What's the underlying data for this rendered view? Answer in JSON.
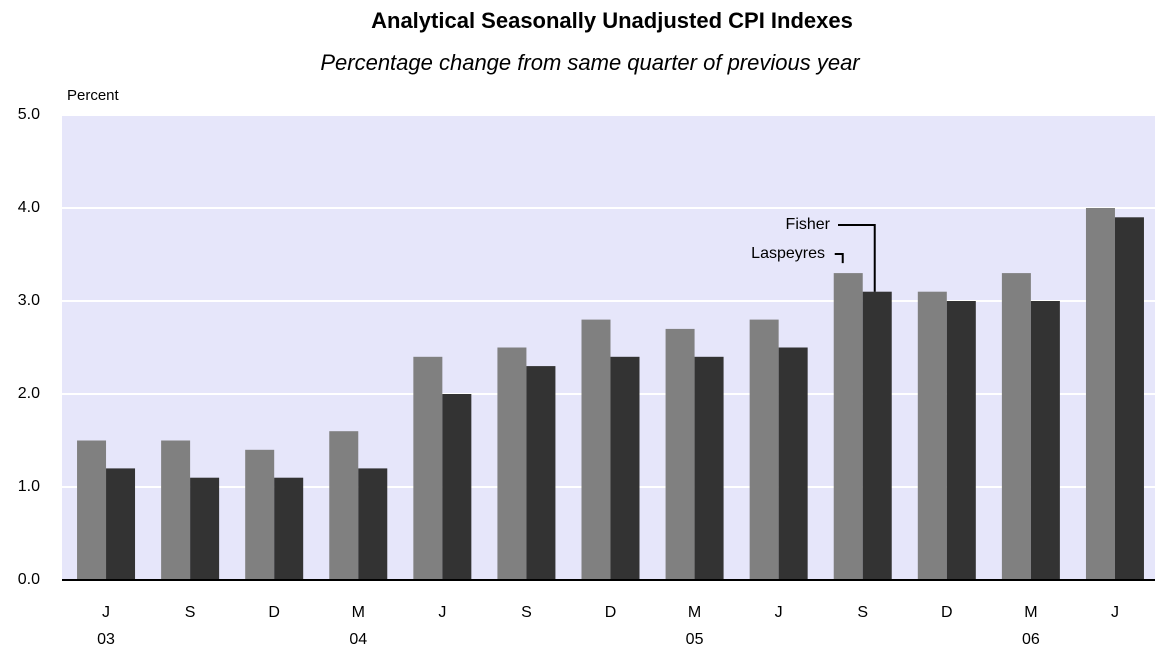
{
  "chart_data": {
    "type": "bar",
    "title": "Analytical Seasonally Unadjusted CPI Indexes",
    "subtitle": "Percentage change from same quarter of previous year",
    "y_axis_label": "Percent",
    "categories": [
      "J",
      "S",
      "D",
      "M",
      "J",
      "S",
      "D",
      "M",
      "J",
      "S",
      "D",
      "M",
      "J"
    ],
    "category_years": [
      "03",
      null,
      null,
      "04",
      null,
      null,
      null,
      "05",
      null,
      null,
      null,
      "06",
      null
    ],
    "series": [
      {
        "name": "Laspeyres",
        "color": "#808080",
        "values": [
          1.5,
          1.5,
          1.4,
          1.6,
          2.4,
          2.5,
          2.8,
          2.7,
          2.8,
          3.3,
          3.1,
          3.3,
          4.0
        ]
      },
      {
        "name": "Fisher",
        "color": "#333333",
        "values": [
          1.2,
          1.1,
          1.1,
          1.2,
          2.0,
          2.3,
          2.4,
          2.4,
          2.5,
          3.1,
          3.0,
          3.0,
          3.9
        ]
      }
    ],
    "ylim": [
      0,
      5
    ],
    "yticks": [
      {
        "value": 0,
        "label": "0.0"
      },
      {
        "value": 1,
        "label": "1.0"
      },
      {
        "value": 2,
        "label": "2.0"
      },
      {
        "value": 3,
        "label": "3.0"
      },
      {
        "value": 4,
        "label": "4.0"
      },
      {
        "value": 5,
        "label": "5.0"
      }
    ],
    "grid": true,
    "plot_background": "#e6e6fa"
  }
}
